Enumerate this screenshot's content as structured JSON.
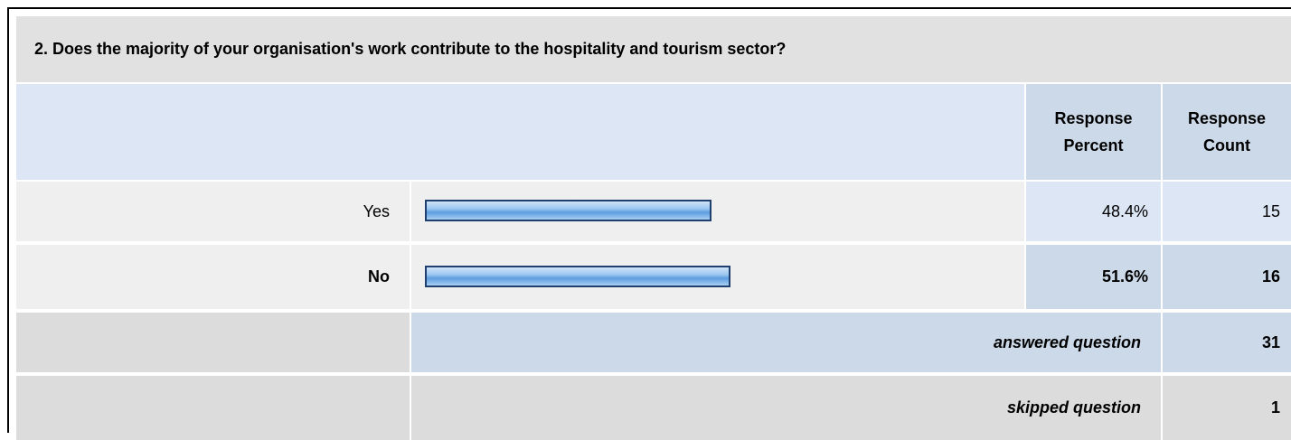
{
  "question": "2. Does the majority of your organisation's work contribute to the hospitality and tourism sector?",
  "headers": [
    "Response Percent",
    "Response Count"
  ],
  "rows": [
    {
      "label": "Yes",
      "percent": 48.4,
      "percent_label": "48.4%",
      "count": 15
    },
    {
      "label": "No",
      "percent": 51.6,
      "percent_label": "51.6%",
      "count": 16
    }
  ],
  "answered": {
    "label": "answered question",
    "count": 31
  },
  "skipped": {
    "label": "skipped question",
    "count": 1
  }
}
